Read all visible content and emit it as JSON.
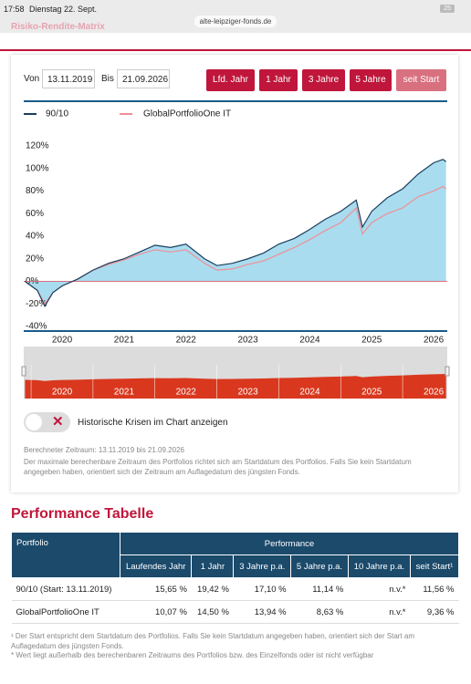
{
  "status_bar": {
    "time": "17:58",
    "date": "Dienstag 22. Sept.",
    "url": "alte-leipziger-fonds.de",
    "battery": "25"
  },
  "section_title": "Risiko-Rendite-Matrix",
  "controls": {
    "from_label": "Von",
    "from_date": "13.11.2019",
    "to_label": "Bis",
    "to_date": "21.09.2026",
    "buttons": [
      "Lfd. Jahr",
      "1 Jahr",
      "3 Jahre",
      "5 Jahre",
      "seit Start"
    ]
  },
  "chart_data": {
    "type": "line",
    "x": [
      2019.4,
      2019.6,
      2019.72,
      2019.85,
      2020.0,
      2020.25,
      2020.5,
      2020.75,
      2021.0,
      2021.25,
      2021.5,
      2021.75,
      2022.0,
      2022.3,
      2022.5,
      2022.75,
      2023.0,
      2023.25,
      2023.5,
      2023.75,
      2024.0,
      2024.25,
      2024.5,
      2024.75,
      2024.85,
      2025.0,
      2025.25,
      2025.5,
      2025.75,
      2026.0,
      2026.15,
      2026.2
    ],
    "series": [
      {
        "name": "90/10",
        "color": "#1b3f5e",
        "fill": "#a9dcef",
        "values": [
          0,
          -8,
          -22,
          -10,
          -4,
          2,
          10,
          16,
          20,
          26,
          32,
          30,
          33,
          20,
          14,
          16,
          20,
          25,
          33,
          38,
          46,
          55,
          62,
          72,
          48,
          62,
          74,
          82,
          95,
          105,
          108,
          106
        ]
      },
      {
        "name": "GlobalPortfolioOne IT",
        "color": "#ef8f95",
        "values": [
          0,
          -8,
          -20,
          -10,
          -4,
          2,
          10,
          15,
          19,
          24,
          28,
          26,
          28,
          16,
          10,
          11,
          15,
          18,
          24,
          30,
          37,
          45,
          52,
          65,
          42,
          52,
          60,
          65,
          75,
          80,
          84,
          82
        ]
      }
    ],
    "xlim": [
      2019.38,
      2026.22
    ],
    "xticks": [
      2020,
      2021,
      2022,
      2023,
      2024,
      2025,
      2026
    ],
    "ylim": [
      -44,
      128
    ],
    "yticks": [
      {
        "value": -40,
        "label": "-40%"
      },
      {
        "value": -20,
        "label": "-20%"
      },
      {
        "value": 0,
        "label": "0%"
      },
      {
        "value": 20,
        "label": "20%"
      },
      {
        "value": 40,
        "label": "40%"
      },
      {
        "value": 60,
        "label": "60%"
      },
      {
        "value": 80,
        "label": "80%"
      },
      {
        "value": 100,
        "label": "100%"
      },
      {
        "value": 120,
        "label": "120%"
      }
    ],
    "grid": false
  },
  "toggle_label": "Historische Krisen im Chart anzeigen",
  "notes": [
    "Berechneter Zeitraum: 13.11.2019 bis 21.09.2026",
    "Der maximale berechenbare Zeitraum des Portfolios richtet sich am Startdatum des Portfolios. Falls Sie kein Startdatum angegeben haben, orientiert sich der Zeitraum am Auflagedatum des jüngsten Fonds."
  ],
  "performance": {
    "title": "Performance Tabelle",
    "header": [
      "Portfolio",
      "Performance"
    ],
    "subheader": [
      "Laufendes Jahr",
      "1 Jahr",
      "3 Jahre p.a.",
      "5 Jahre p.a.",
      "10 Jahre p.a.",
      "seit Start¹"
    ],
    "rows": [
      [
        "90/10 (Start: 13.11.2019)",
        "15,65 %",
        "19,42 %",
        "17,10 %",
        "11,14 %",
        "n.v.*",
        "11,56 %"
      ],
      [
        "GlobalPortfolioOne IT",
        "10,07 %",
        "14,50 %",
        "13,94 %",
        "8,63 %",
        "n.v.*",
        "9,36 %"
      ]
    ]
  },
  "footnotes": [
    "¹ Der Start entspricht dem Startdatum des Portfolios. Falls Sie kein Startdatum angegeben haben, orientiert sich der Start am Auflagedatum des jüngsten Fonds.",
    "* Wert liegt außerhalb des berechenbaren Zeitraums des Portfolios bzw. des Einzelfonds oder ist nicht verfügbar"
  ]
}
